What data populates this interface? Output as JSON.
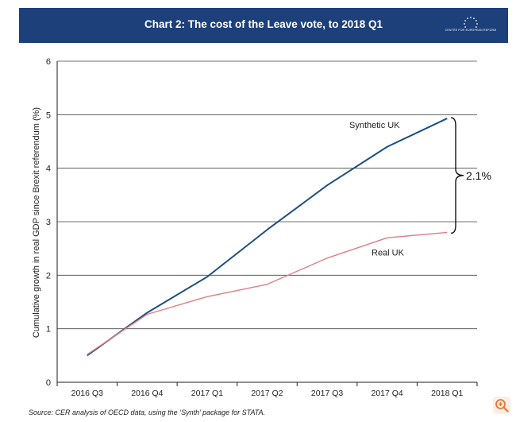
{
  "header": {
    "title": "Chart 2: The cost of the Leave vote, to 2018 Q1",
    "logo_text": "CENTRE FOR EUROPEAN REFORM"
  },
  "chart_data": {
    "type": "line",
    "title": "Chart 2: The cost of the Leave vote, to 2018 Q1",
    "xlabel": "",
    "ylabel": "Cumulative growth in real GDP since Brexit referendum (%)",
    "ylim": [
      0,
      6
    ],
    "yticks": [
      0,
      1,
      2,
      3,
      4,
      5,
      6
    ],
    "grid": true,
    "categories": [
      "2016 Q3",
      "2016 Q4",
      "2017 Q1",
      "2017 Q2",
      "2017 Q3",
      "2017 Q4",
      "2018 Q1"
    ],
    "series": [
      {
        "name": "Synthetic UK",
        "color": "#1d4e7e",
        "values": [
          0.5,
          1.3,
          1.97,
          2.85,
          3.68,
          4.4,
          4.93
        ]
      },
      {
        "name": "Real UK",
        "color": "#e07d84",
        "values": [
          0.52,
          1.27,
          1.6,
          1.83,
          2.32,
          2.7,
          2.8
        ]
      }
    ],
    "annotations": [
      {
        "text": "2.1%",
        "type": "gap-brace"
      }
    ]
  },
  "source": "Source: CER analysis of OECD data, using the ‘Synth’ package for STATA.",
  "colors": {
    "header_bg": "#1d3f7a",
    "grid": "#444444"
  },
  "zoom_icon": "zoom-in-icon"
}
